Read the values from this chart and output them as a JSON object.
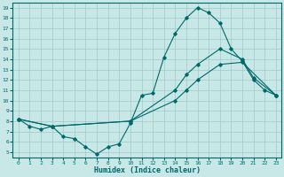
{
  "xlabel": "Humidex (Indice chaleur)",
  "background_color": "#c8e8e8",
  "grid_color": "#a0c8c8",
  "line_color": "#006868",
  "xlim": [
    -0.5,
    23.5
  ],
  "ylim": [
    4.5,
    19.5
  ],
  "xticks": [
    0,
    1,
    2,
    3,
    4,
    5,
    6,
    7,
    8,
    9,
    10,
    11,
    12,
    13,
    14,
    15,
    16,
    17,
    18,
    19,
    20,
    21,
    22,
    23
  ],
  "yticks": [
    5,
    6,
    7,
    8,
    9,
    10,
    11,
    12,
    13,
    14,
    15,
    16,
    17,
    18,
    19
  ],
  "line1_x": [
    0,
    1,
    2,
    3,
    4,
    5,
    6,
    7,
    8,
    9,
    10,
    11,
    12,
    13,
    14,
    15,
    16,
    17,
    18,
    19,
    20,
    21,
    22,
    23
  ],
  "line1_y": [
    8.2,
    7.5,
    7.2,
    7.5,
    6.5,
    6.3,
    5.5,
    4.8,
    5.5,
    5.8,
    7.8,
    10.5,
    10.7,
    14.2,
    16.5,
    18.0,
    19.0,
    18.5,
    17.5,
    15.0,
    13.8,
    12.0,
    11.0,
    10.5
  ],
  "line2_x": [
    0,
    3,
    10,
    14,
    15,
    16,
    18,
    20,
    21,
    23
  ],
  "line2_y": [
    8.2,
    7.5,
    8.0,
    11.0,
    12.5,
    13.5,
    15.0,
    14.0,
    12.2,
    10.5
  ],
  "line3_x": [
    0,
    3,
    10,
    14,
    15,
    16,
    18,
    20,
    23
  ],
  "line3_y": [
    8.2,
    7.5,
    8.0,
    10.0,
    11.0,
    12.0,
    13.5,
    13.7,
    10.5
  ]
}
